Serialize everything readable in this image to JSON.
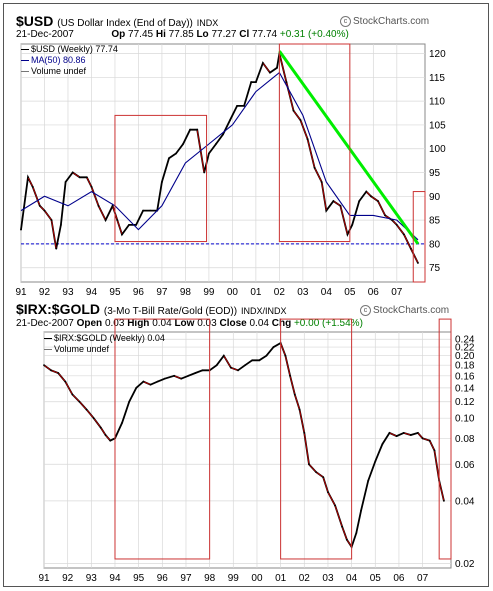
{
  "usd_panel": {
    "symbol": "$USD",
    "name": "(US Dollar Index (End of Day))",
    "exchange": "INDX",
    "brand": "StockCharts.com",
    "date": "21-Dec-2007",
    "quote": {
      "op_label": "Op",
      "op": "77.45",
      "hi_label": "Hi",
      "hi": "77.85",
      "lo_label": "Lo",
      "lo": "77.27",
      "cl_label": "Cl",
      "cl": "77.74",
      "chg": "+0.31 (+0.40%)"
    },
    "legend": {
      "series": "$USD (Weekly) 77.74",
      "ma": "MA(50) 80.86",
      "volume": "Volume undef"
    },
    "colors": {
      "price": "#000000",
      "down": "#cc0000",
      "ma": "#00008b",
      "trend": "#00ee00",
      "box": "#cc3333",
      "ref": "#0000cc"
    }
  },
  "gold_panel": {
    "symbol": "$IRX:$GOLD",
    "name": "(3-Mo T-Bill Rate/Gold (EOD))",
    "exchange": "INDX/INDX",
    "brand": "StockCharts.com",
    "date": "21-Dec-2007",
    "quote": {
      "open_label": "Open",
      "open": "0.03",
      "high_label": "High",
      "high": "0.04",
      "low_label": "Low",
      "low": "0.03",
      "close_label": "Close",
      "close": "0.04",
      "chg_label": "Chg",
      "chg": "+0.00 (+1.54%)"
    },
    "legend": {
      "series": "$IRX:$GOLD (Weekly) 0.04",
      "volume": "Volume undef"
    }
  },
  "chart_data": [
    {
      "type": "line",
      "title": "$USD (US Dollar Index (End of Day))",
      "scale": "linear",
      "ylim": [
        72,
        122
      ],
      "yticks": [
        75,
        80,
        85,
        90,
        95,
        100,
        105,
        110,
        115,
        120
      ],
      "xticks": [
        "91",
        "92",
        "93",
        "94",
        "95",
        "96",
        "97",
        "98",
        "99",
        "00",
        "01",
        "02",
        "03",
        "04",
        "05",
        "06",
        "07"
      ],
      "reference_line": 80,
      "series": [
        {
          "name": "$USD (Weekly)",
          "x": [
            1991.0,
            1991.3,
            1991.5,
            1991.8,
            1992.0,
            1992.3,
            1992.5,
            1992.7,
            1992.9,
            1993.2,
            1993.5,
            1993.8,
            1994.0,
            1994.3,
            1994.6,
            1994.9,
            1995.1,
            1995.3,
            1995.6,
            1995.9,
            1996.2,
            1996.5,
            1996.8,
            1997.0,
            1997.3,
            1997.6,
            1997.9,
            1998.2,
            1998.5,
            1998.8,
            1999.0,
            1999.3,
            1999.6,
            1999.9,
            2000.2,
            2000.5,
            2000.8,
            2001.0,
            2001.3,
            2001.6,
            2001.9,
            2002.0,
            2002.3,
            2002.6,
            2002.9,
            2003.2,
            2003.5,
            2003.8,
            2004.0,
            2004.3,
            2004.6,
            2004.9,
            2005.1,
            2005.4,
            2005.7,
            2005.9,
            2006.2,
            2006.5,
            2006.8,
            2007.0,
            2007.3,
            2007.6,
            2007.9
          ],
          "y": [
            83,
            94,
            92,
            88,
            87,
            85,
            79,
            84,
            93,
            95,
            94,
            94,
            92,
            88,
            85,
            88,
            85,
            82,
            84,
            84,
            87,
            87,
            87,
            93,
            98,
            99,
            101,
            104,
            104,
            95,
            99,
            101,
            103,
            106,
            109,
            109,
            114,
            114,
            118,
            116,
            117,
            120,
            114,
            108,
            106,
            102,
            96,
            93,
            87,
            89,
            88,
            82,
            84,
            89,
            91,
            90,
            89,
            86,
            85,
            84,
            82,
            79,
            76
          ]
        },
        {
          "name": "MA(50)",
          "x": [
            1991.0,
            1992.0,
            1993.0,
            1994.0,
            1995.0,
            1996.0,
            1997.0,
            1998.0,
            1999.0,
            2000.0,
            2001.0,
            2002.0,
            2003.0,
            2004.0,
            2005.0,
            2006.0,
            2007.0,
            2007.9
          ],
          "y": [
            87,
            90,
            88,
            91,
            88,
            83,
            88,
            97,
            101,
            105,
            112,
            116,
            107,
            93,
            86,
            86,
            85,
            80.86
          ]
        },
        {
          "name": "Trend line",
          "x": [
            2002.0,
            2007.9
          ],
          "y": [
            120.5,
            80
          ]
        }
      ],
      "highlight_boxes": [
        {
          "x_from": 1995.0,
          "x_to": 1998.9,
          "y_from": 80.5,
          "y_to": 107
        },
        {
          "x_from": 2002.0,
          "x_to": 2005.0,
          "y_from": 80.5,
          "y_to": 122
        },
        {
          "x_from": 2007.7,
          "x_to": 2008.2,
          "y_from": 72,
          "y_to": 91
        }
      ]
    },
    {
      "type": "line",
      "title": "$IRX:$GOLD (3-Mo T-Bill Rate/Gold (EOD))",
      "scale": "log",
      "ylim": [
        0.019,
        0.26
      ],
      "yticks": [
        0.02,
        0.04,
        0.06,
        0.08,
        0.1,
        0.12,
        0.14,
        0.16,
        0.18,
        0.2,
        0.22,
        0.24
      ],
      "xticks": [
        "91",
        "92",
        "93",
        "94",
        "95",
        "96",
        "97",
        "98",
        "99",
        "00",
        "01",
        "02",
        "03",
        "04",
        "05",
        "06",
        "07"
      ],
      "series": [
        {
          "name": "$IRX:$GOLD (Weekly)",
          "x": [
            1991.0,
            1991.3,
            1991.6,
            1991.9,
            1992.2,
            1992.5,
            1992.8,
            1993.1,
            1993.4,
            1993.6,
            1993.8,
            1994.0,
            1994.3,
            1994.6,
            1994.9,
            1995.2,
            1995.5,
            1995.8,
            1996.1,
            1996.5,
            1996.8,
            1997.1,
            1997.4,
            1997.7,
            1998.0,
            1998.3,
            1998.6,
            1998.9,
            1999.2,
            1999.5,
            1999.8,
            2000.1,
            2000.4,
            2000.7,
            2001.0,
            2001.2,
            2001.4,
            2001.6,
            2001.8,
            2002.0,
            2002.2,
            2002.5,
            2002.8,
            2003.0,
            2003.3,
            2003.6,
            2003.8,
            2004.0,
            2004.2,
            2004.4,
            2004.7,
            2005.0,
            2005.3,
            2005.6,
            2005.9,
            2006.2,
            2006.5,
            2006.8,
            2007.0,
            2007.3,
            2007.5,
            2007.7,
            2007.9
          ],
          "y": [
            0.18,
            0.17,
            0.165,
            0.15,
            0.13,
            0.12,
            0.11,
            0.1,
            0.09,
            0.083,
            0.078,
            0.08,
            0.095,
            0.12,
            0.14,
            0.15,
            0.145,
            0.15,
            0.155,
            0.16,
            0.155,
            0.16,
            0.165,
            0.17,
            0.17,
            0.18,
            0.2,
            0.175,
            0.17,
            0.18,
            0.19,
            0.19,
            0.2,
            0.22,
            0.23,
            0.2,
            0.16,
            0.13,
            0.11,
            0.085,
            0.06,
            0.055,
            0.052,
            0.044,
            0.038,
            0.03,
            0.026,
            0.024,
            0.028,
            0.036,
            0.05,
            0.062,
            0.075,
            0.085,
            0.082,
            0.085,
            0.083,
            0.085,
            0.08,
            0.078,
            0.07,
            0.05,
            0.04
          ]
        }
      ],
      "highlight_boxes": [
        {
          "x_from": 1994.0,
          "x_to": 1998.0,
          "y_from": 0.021,
          "y_to": 0.3
        },
        {
          "x_from": 2001.0,
          "x_to": 2004.0,
          "y_from": 0.021,
          "y_to": 0.3
        },
        {
          "x_from": 2007.7,
          "x_to": 2008.2,
          "y_from": 0.021,
          "y_to": 0.3
        }
      ]
    }
  ]
}
